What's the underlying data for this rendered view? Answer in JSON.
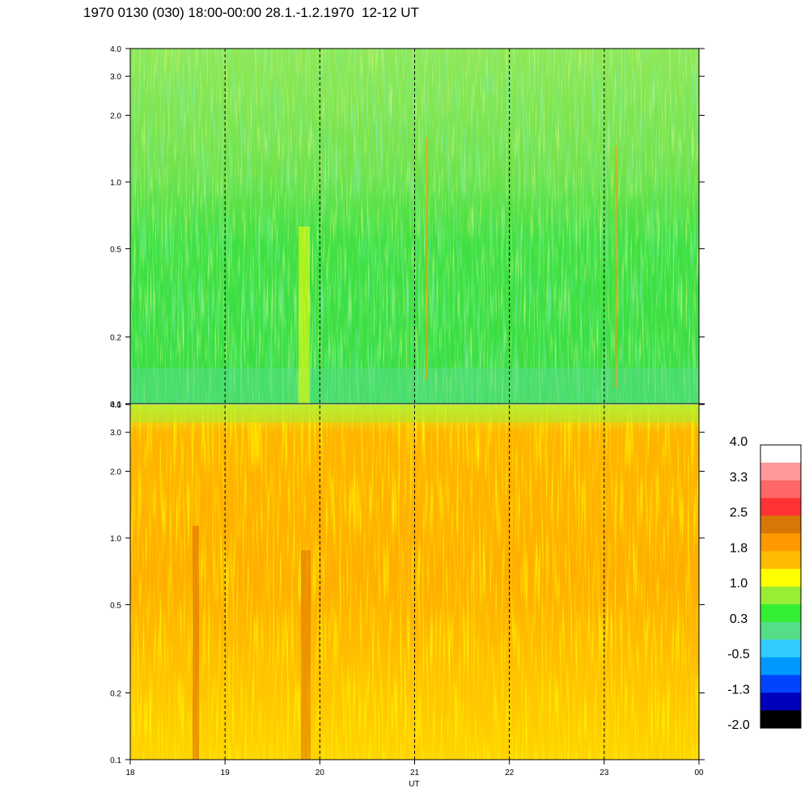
{
  "title": "1970 0130 (030) 18:00-00:00 28.1.-1.2.1970  12-12 UT",
  "chart_data": {
    "type": "heatmap",
    "xlabel": "UT",
    "x_ticks": [
      "18",
      "19",
      "20",
      "21",
      "22",
      "23",
      "00"
    ],
    "x_range": [
      18,
      24
    ],
    "y_ticks": [
      "0.1",
      "0.2",
      "0.5",
      "1.0",
      "2.0",
      "3.0",
      "4.0"
    ],
    "y_tick_values": [
      0.1,
      0.2,
      0.5,
      1.0,
      2.0,
      3.0,
      4.0
    ],
    "y_scale": "log",
    "y_range": [
      0.1,
      4.0
    ],
    "panels": [
      {
        "id": "upper",
        "dominant_level": 0.3
      },
      {
        "id": "lower",
        "dominant_level": 1.8
      }
    ],
    "vertical_dashed_lines_at": [
      19,
      20,
      21,
      22,
      23
    ],
    "colorbar": {
      "labels": [
        "4.0",
        "3.3",
        "2.5",
        "1.8",
        "1.0",
        "0.3",
        "-0.5",
        "-1.3",
        "-2.0"
      ],
      "colors": [
        "#ffffff",
        "#ff9999",
        "#ff6666",
        "#ff3333",
        "#d97706",
        "#ff9900",
        "#ffbb00",
        "#ffff00",
        "#99ee33",
        "#33ee33",
        "#55dd88",
        "#33ccff",
        "#0099ff",
        "#0044ff",
        "#0000bb",
        "#000000"
      ]
    }
  }
}
